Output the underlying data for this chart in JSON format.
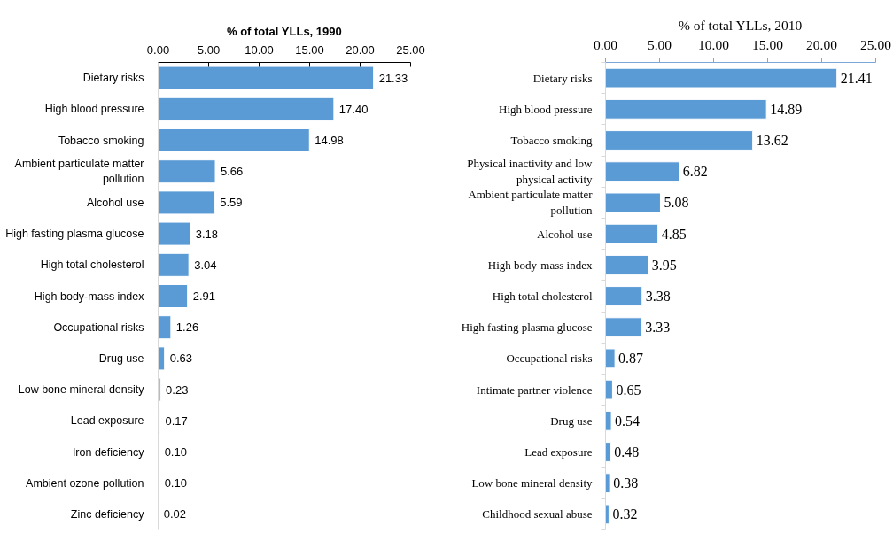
{
  "chart_data": [
    {
      "type": "bar",
      "orientation": "horizontal",
      "xlabel": "% of total YLLs, 1990",
      "categories": [
        "Dietary risks",
        "High blood pressure",
        "Tobacco smoking",
        "Ambient particulate matter pollution",
        "Alcohol use",
        "High fasting plasma glucose",
        "High total cholesterol",
        "High body-mass index",
        "Occupational risks",
        "Drug use",
        "Low bone mineral density",
        "Lead exposure",
        "Iron deficiency",
        "Ambient ozone pollution",
        "Zinc deficiency"
      ],
      "values": [
        21.33,
        17.4,
        14.98,
        5.66,
        5.59,
        3.18,
        3.04,
        2.91,
        1.26,
        0.63,
        0.23,
        0.17,
        0.1,
        0.1,
        0.02
      ],
      "value_labels": [
        "21.33",
        "17.40",
        "14.98",
        "5.66",
        "5.59",
        "3.18",
        "3.04",
        "2.91",
        "1.26",
        "0.63",
        "0.23",
        "0.17",
        "0.10",
        "0.10",
        "0.02"
      ],
      "color": "#5b9bd5",
      "xlim": [
        0,
        25
      ],
      "xticks": [
        {
          "value": 0,
          "label": "0.00"
        },
        {
          "value": 5,
          "label": "5.00"
        },
        {
          "value": 10,
          "label": "10.00"
        },
        {
          "value": 15,
          "label": "15.00"
        },
        {
          "value": 20,
          "label": "20.00"
        },
        {
          "value": 25,
          "label": "25.00"
        }
      ]
    },
    {
      "type": "bar",
      "orientation": "horizontal",
      "xlabel": "% of total YLLs, 2010",
      "categories": [
        "Dietary risks",
        "High blood pressure",
        "Tobacco smoking",
        "Physical inactivity and low physical activity",
        "Ambient particulate matter pollution",
        "Alcohol use",
        "High body-mass index",
        "High total cholesterol",
        "High fasting plasma glucose",
        "Occupational risks",
        "Intimate partner violence",
        "Drug use",
        "Lead exposure",
        "Low bone mineral density",
        "Childhood sexual abuse"
      ],
      "values": [
        21.41,
        14.89,
        13.62,
        6.82,
        5.08,
        4.85,
        3.95,
        3.38,
        3.33,
        0.87,
        0.65,
        0.54,
        0.48,
        0.38,
        0.32
      ],
      "value_labels": [
        "21.41",
        "14.89",
        "13.62",
        "6.82",
        "5.08",
        "4.85",
        "3.95",
        "3.38",
        "3.33",
        "0.87",
        "0.65",
        "0.54",
        "0.48",
        "0.38",
        "0.32"
      ],
      "color": "#5b9bd5",
      "xlim": [
        0,
        25
      ],
      "xticks": [
        {
          "value": 0,
          "label": "0.00"
        },
        {
          "value": 5,
          "label": "5.00"
        },
        {
          "value": 10,
          "label": "10.00"
        },
        {
          "value": 15,
          "label": "15.00"
        },
        {
          "value": 20,
          "label": "20.00"
        },
        {
          "value": 25,
          "label": "25.00"
        }
      ]
    }
  ]
}
